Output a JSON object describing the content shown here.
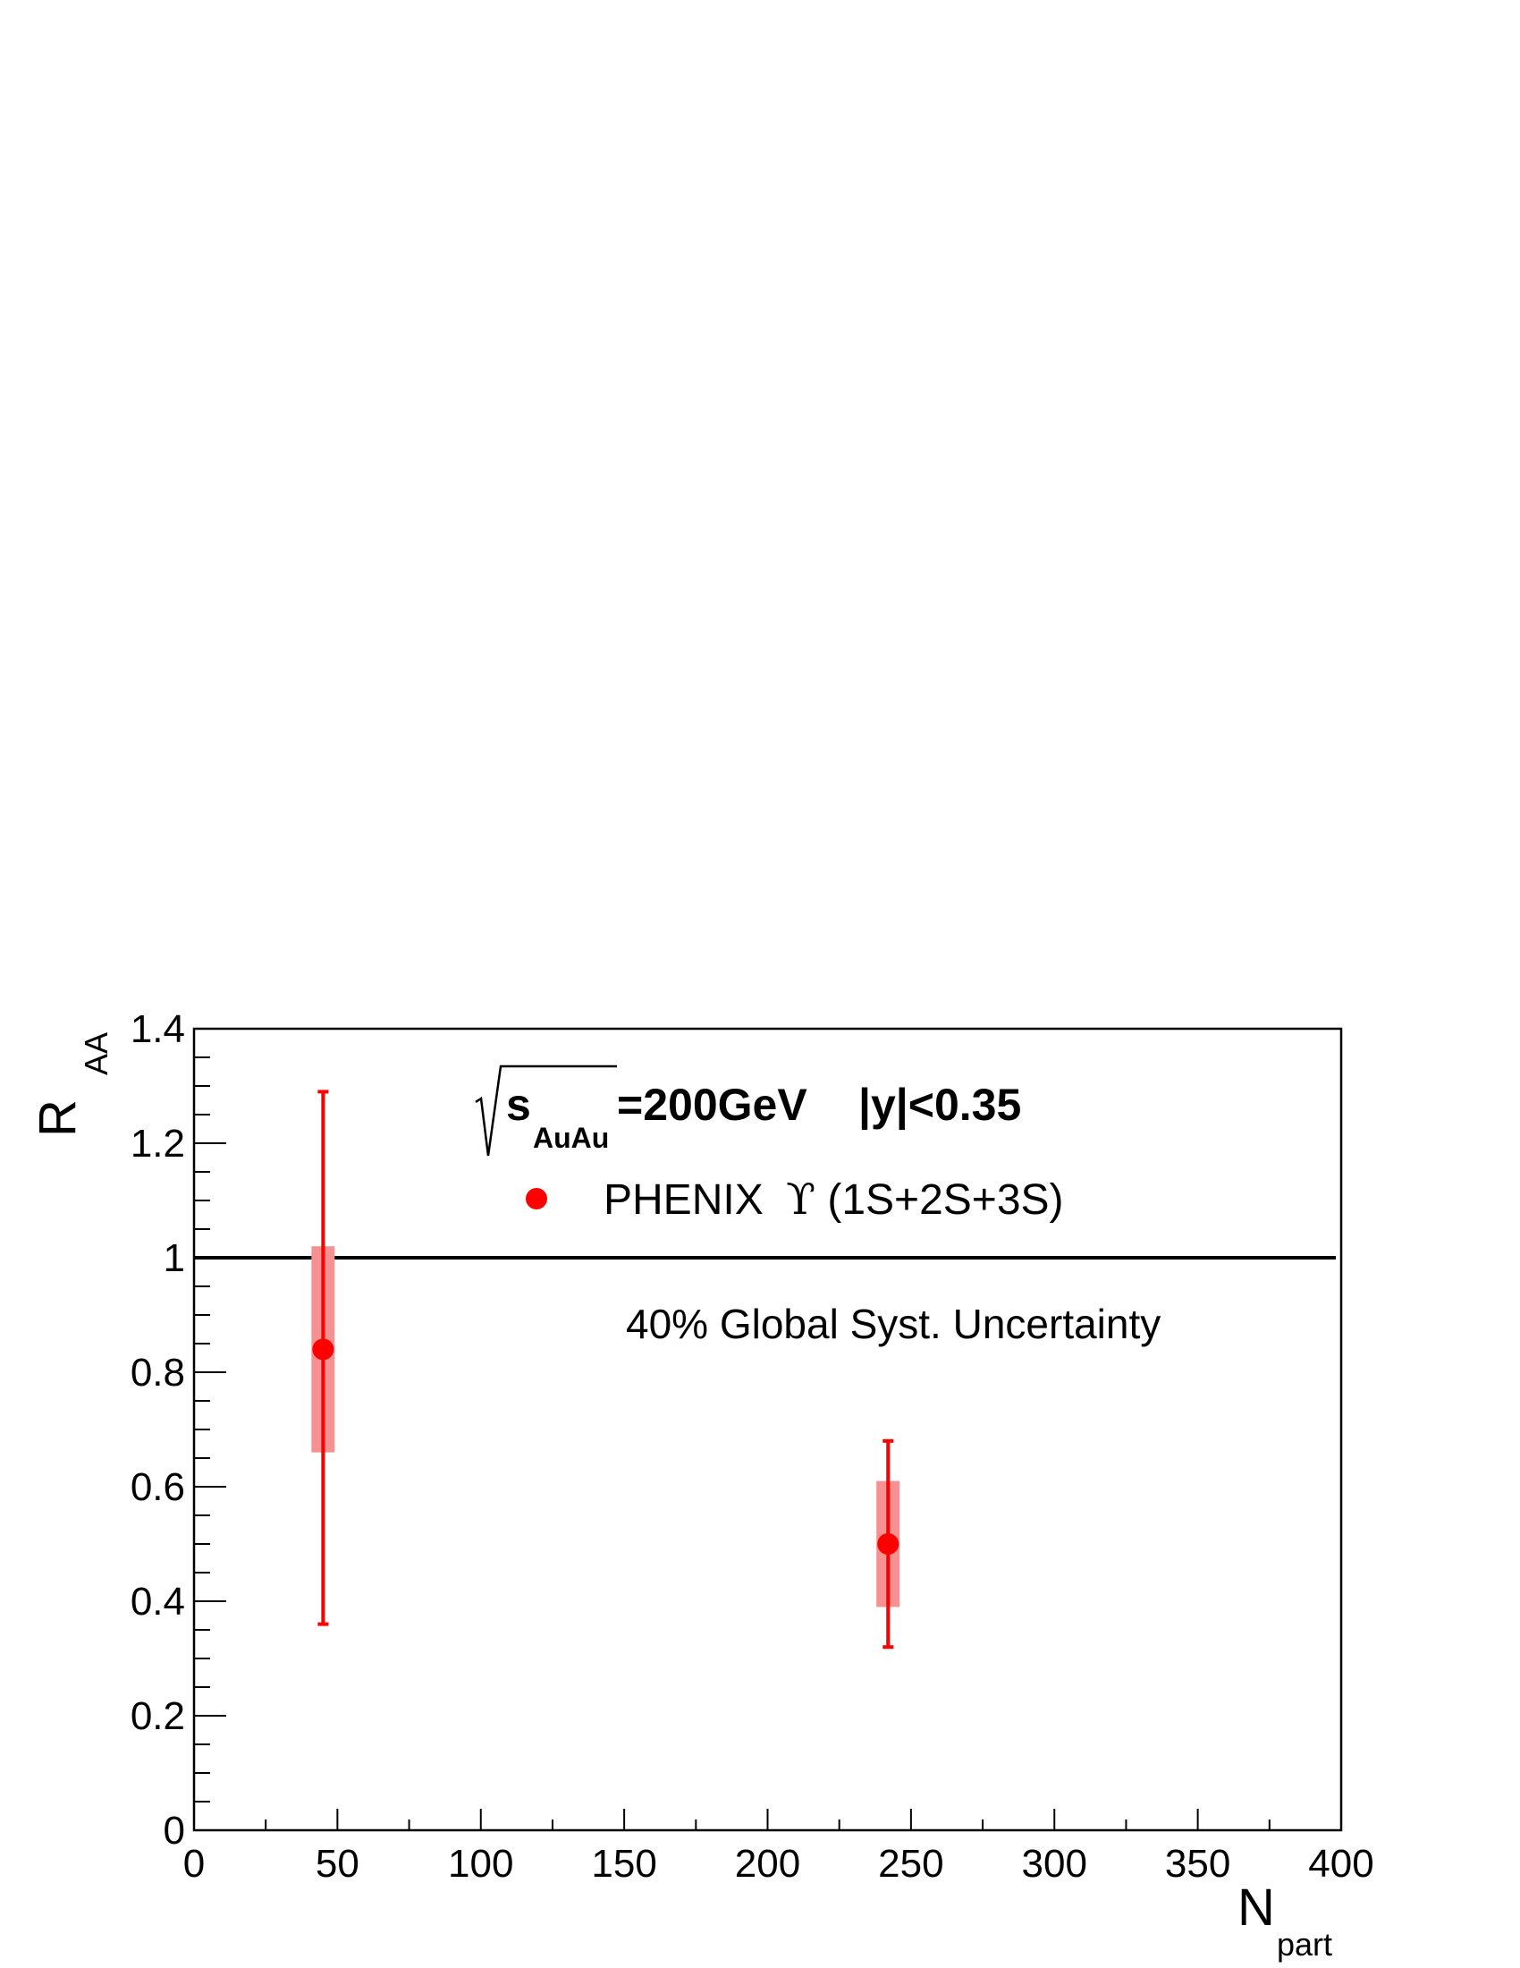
{
  "chart_data": {
    "type": "scatter",
    "xlabel": {
      "main": "N",
      "sub": "part"
    },
    "ylabel": {
      "main": "R",
      "sub": "AA"
    },
    "xlim": [
      0,
      400
    ],
    "ylim": [
      0,
      1.4
    ],
    "x_ticks": [
      "0",
      "50",
      "100",
      "150",
      "200",
      "250",
      "300",
      "350",
      "400"
    ],
    "y_ticks": [
      "0",
      "0.2",
      "0.4",
      "0.6",
      "0.8",
      "1",
      "1.2",
      "1.4"
    ],
    "reference_line": {
      "y": 1.0
    },
    "annotation": {
      "energy_sub": "AuAu",
      "energy_main_s": "s",
      "energy_value": "=200GeV",
      "rapidity": "|y|<0.35"
    },
    "legend": {
      "position": "top-center",
      "entries": [
        {
          "prefix": "PHENIX",
          "symbol": "ϒ",
          "suffix": "(1S+2S+3S)",
          "color": "#ff0000"
        }
      ]
    },
    "note": "40% Global Syst. Uncertainty",
    "series": [
      {
        "name": "PHENIX ϒ(1S+2S+3S)",
        "color": "#ff0000",
        "syst_color": "#f79191",
        "points": [
          {
            "x": 45,
            "y": 0.84,
            "stat_low": 0.36,
            "stat_high": 1.29,
            "syst_low": 0.66,
            "syst_high": 1.02
          },
          {
            "x": 242,
            "y": 0.5,
            "stat_low": 0.32,
            "stat_high": 0.68,
            "syst_low": 0.39,
            "syst_high": 0.61
          }
        ]
      }
    ]
  }
}
